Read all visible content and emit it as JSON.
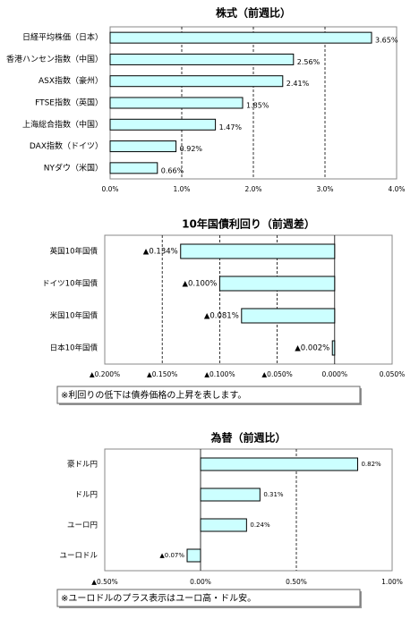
{
  "chart_data": [
    {
      "type": "bar",
      "orientation": "horizontal",
      "title": "株式（前週比）",
      "categories": [
        "日経平均株価（日本）",
        "香港ハンセン指数（中国）",
        "ASX指数（豪州）",
        "FTSE指数（英国）",
        "上海総合指数（中国）",
        "DAX指数（ドイツ）",
        "NYダウ（米国）"
      ],
      "values": [
        3.65,
        2.56,
        2.41,
        1.85,
        1.47,
        0.92,
        0.66
      ],
      "value_labels": [
        "3.65%",
        "2.56%",
        "2.41%",
        "1.85%",
        "1.47%",
        "0.92%",
        "0.66%"
      ],
      "color": "#ccffff",
      "negative_color": "#ff0000",
      "grid": true,
      "xlim": [
        0,
        4
      ],
      "xticks": [
        {
          "value": 0,
          "label": "0.0%"
        },
        {
          "value": 1,
          "label": "1.0%"
        },
        {
          "value": 2,
          "label": "2.0%"
        },
        {
          "value": 3,
          "label": "3.0%"
        },
        {
          "value": 4,
          "label": "4.0%"
        }
      ]
    },
    {
      "type": "bar",
      "orientation": "horizontal",
      "title": "10年国債利回り（前週差）",
      "categories": [
        "英国10年国債",
        "ドイツ10年国債",
        "米国10年国債",
        "日本10年国債"
      ],
      "values": [
        -0.134,
        -0.1,
        -0.081,
        -0.002
      ],
      "value_labels": [
        "▲0.134%",
        "▲0.100%",
        "▲0.081%",
        "▲0.002%"
      ],
      "color": "#ccffff",
      "negative_color": "#ff0000",
      "grid": true,
      "xlim": [
        -0.2,
        0.05
      ],
      "xticks": [
        {
          "value": -0.2,
          "label": "▲0.200%"
        },
        {
          "value": -0.15,
          "label": "▲0.150%"
        },
        {
          "value": -0.1,
          "label": "▲0.100%"
        },
        {
          "value": -0.05,
          "label": "▲0.050%"
        },
        {
          "value": 0,
          "label": "0.000%"
        },
        {
          "value": 0.05,
          "label": "0.050%"
        }
      ],
      "note": "※利回りの低下は債券価格の上昇を表します。"
    },
    {
      "type": "bar",
      "orientation": "horizontal",
      "title": "為替（前週比）",
      "categories": [
        "豪ドル円",
        "ドル円",
        "ユーロ円",
        "ユーロドル"
      ],
      "values": [
        0.82,
        0.31,
        0.24,
        -0.07
      ],
      "value_labels": [
        "0.82%",
        "0.31%",
        "0.24%",
        "▲0.07%"
      ],
      "color": "#ccffff",
      "negative_color": "#ff0000",
      "grid": true,
      "xlim": [
        -0.5,
        1.0
      ],
      "xticks": [
        {
          "value": -0.5,
          "label": "▲0.50%"
        },
        {
          "value": 0,
          "label": "0.00%"
        },
        {
          "value": 0.5,
          "label": "0.50%"
        },
        {
          "value": 1.0,
          "label": "1.00%"
        }
      ],
      "note": "※ユーロドルのプラス表示はユーロ高・ドル安。"
    }
  ]
}
